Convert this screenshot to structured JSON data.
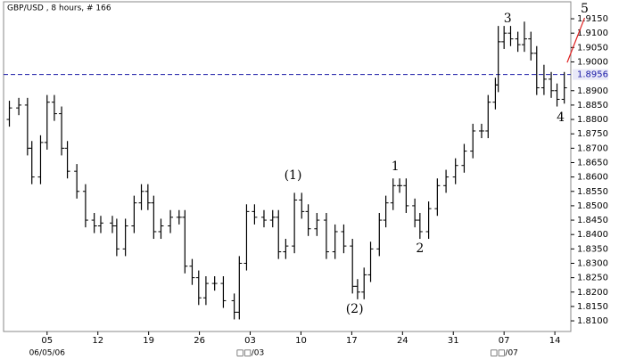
{
  "chart_data": {
    "type": "ohlc",
    "title": "GBP/USD , 8 hours, # 166",
    "bar_color": "#000000",
    "x": [
      -0.2,
      1.1,
      2.3,
      2.9,
      4.1,
      5.0,
      6.0,
      7.0,
      7.8,
      9.1,
      10.3,
      11.5,
      12.4,
      14.0,
      14.6,
      15.8,
      17.0,
      18.0,
      18.9,
      19.7,
      20.7,
      22.0,
      23.2,
      24.0,
      25.0,
      25.9,
      26.9,
      28.1,
      29.3,
      30.8,
      31.5,
      32.5,
      33.6,
      34.9,
      36.1,
      36.9,
      37.9,
      39.1,
      40.1,
      41.0,
      42.2,
      43.5,
      44.7,
      45.9,
      47.1,
      47.8,
      48.7,
      49.6,
      50.8,
      51.7,
      52.7,
      53.6,
      54.5,
      55.7,
      56.4,
      57.6,
      58.8,
      60.0,
      61.3,
      62.5,
      63.7,
      64.9,
      65.8,
      66.8,
      67.2,
      68.0,
      68.9,
      69.9,
      70.8,
      71.7,
      72.5,
      73.5,
      74.5,
      75.3,
      76.3
    ],
    "open": [
      1.88,
      1.884,
      1.885,
      1.87,
      1.86,
      1.872,
      1.886,
      1.882,
      1.87,
      1.862,
      1.855,
      1.845,
      1.843,
      1.844,
      1.843,
      1.835,
      1.843,
      1.851,
      1.855,
      1.851,
      1.841,
      1.843,
      1.846,
      1.846,
      1.829,
      1.825,
      1.818,
      1.823,
      1.823,
      1.817,
      1.813,
      1.83,
      1.848,
      1.846,
      1.845,
      1.846,
      1.834,
      1.836,
      1.852,
      1.848,
      1.842,
      1.845,
      1.834,
      1.841,
      1.836,
      1.822,
      1.82,
      1.826,
      1.835,
      1.845,
      1.851,
      1.857,
      1.857,
      1.85,
      1.845,
      1.841,
      1.849,
      1.857,
      1.86,
      1.864,
      1.869,
      1.876,
      1.876,
      1.886,
      1.892,
      1.907,
      1.91,
      1.908,
      1.906,
      1.908,
      1.903,
      1.891,
      1.894,
      1.89,
      1.887
    ],
    "high": [
      1.8865,
      1.8875,
      1.8875,
      1.8725,
      1.8745,
      1.8885,
      1.8885,
      1.8845,
      1.8725,
      1.8645,
      1.8575,
      1.8475,
      1.8465,
      1.8465,
      1.8455,
      1.8455,
      1.8535,
      1.8575,
      1.8575,
      1.8535,
      1.8455,
      1.8485,
      1.8485,
      1.8485,
      1.8315,
      1.8275,
      1.8255,
      1.8255,
      1.8255,
      1.8195,
      1.8325,
      1.8505,
      1.8505,
      1.8485,
      1.8485,
      1.8485,
      1.8385,
      1.8545,
      1.8545,
      1.8505,
      1.8475,
      1.8475,
      1.8435,
      1.8435,
      1.8385,
      1.8245,
      1.8285,
      1.8375,
      1.8475,
      1.8535,
      1.8595,
      1.8595,
      1.8595,
      1.8525,
      1.8475,
      1.8515,
      1.8595,
      1.8625,
      1.8665,
      1.8715,
      1.8785,
      1.8785,
      1.8885,
      1.8945,
      1.9125,
      1.9125,
      1.9125,
      1.9105,
      1.914,
      1.9105,
      1.9055,
      1.899,
      1.8965,
      1.8925,
      1.8965
    ],
    "low": [
      1.8775,
      1.8815,
      1.8675,
      1.8575,
      1.8575,
      1.8695,
      1.8795,
      1.8675,
      1.8595,
      1.8525,
      1.8425,
      1.8405,
      1.8405,
      1.8405,
      1.8325,
      1.8325,
      1.8405,
      1.8485,
      1.8485,
      1.8385,
      1.8385,
      1.8405,
      1.8435,
      1.8265,
      1.8225,
      1.8155,
      1.8155,
      1.8205,
      1.8145,
      1.8105,
      1.8105,
      1.8275,
      1.8435,
      1.8425,
      1.8425,
      1.8315,
      1.8315,
      1.8335,
      1.8455,
      1.8395,
      1.8395,
      1.8315,
      1.8315,
      1.8335,
      1.8195,
      1.8175,
      1.8175,
      1.8235,
      1.8325,
      1.8425,
      1.8485,
      1.8545,
      1.8475,
      1.8425,
      1.8385,
      1.8385,
      1.8465,
      1.8545,
      1.8575,
      1.8615,
      1.8665,
      1.8735,
      1.8735,
      1.8835,
      1.8895,
      1.9045,
      1.9055,
      1.9035,
      1.9035,
      1.9005,
      1.8885,
      1.8885,
      1.8875,
      1.8845,
      1.8855
    ],
    "close": [
      1.884,
      1.885,
      1.87,
      1.86,
      1.872,
      1.886,
      1.882,
      1.87,
      1.862,
      1.855,
      1.845,
      1.843,
      1.844,
      1.843,
      1.835,
      1.843,
      1.851,
      1.855,
      1.851,
      1.841,
      1.843,
      1.846,
      1.846,
      1.829,
      1.825,
      1.818,
      1.823,
      1.823,
      1.817,
      1.813,
      1.83,
      1.848,
      1.846,
      1.845,
      1.846,
      1.834,
      1.836,
      1.852,
      1.848,
      1.842,
      1.845,
      1.834,
      1.841,
      1.836,
      1.822,
      1.82,
      1.826,
      1.835,
      1.845,
      1.851,
      1.857,
      1.857,
      1.85,
      1.845,
      1.841,
      1.849,
      1.857,
      1.86,
      1.864,
      1.869,
      1.876,
      1.876,
      1.886,
      1.892,
      1.907,
      1.91,
      1.908,
      1.906,
      1.908,
      1.903,
      1.891,
      1.894,
      1.89,
      1.887,
      1.891
    ],
    "xlim": [
      -1.0,
      77.2
    ],
    "xticks": [
      {
        "value": 5,
        "label": "05"
      },
      {
        "value": 12,
        "label": "12"
      },
      {
        "value": 19,
        "label": "19"
      },
      {
        "value": 26,
        "label": "26"
      },
      {
        "value": 33,
        "label": "03"
      },
      {
        "value": 40,
        "label": "10"
      },
      {
        "value": 47,
        "label": "17"
      },
      {
        "value": 54,
        "label": "24"
      },
      {
        "value": 61,
        "label": "31"
      },
      {
        "value": 68,
        "label": "07"
      },
      {
        "value": 75,
        "label": "14"
      }
    ],
    "date_labels": [
      {
        "value": 5,
        "label": "06/05/06"
      },
      {
        "value": 33,
        "label": "□□/03"
      },
      {
        "value": 68,
        "label": "□□/07"
      }
    ],
    "ylim": [
      1.8063,
      1.9209
    ],
    "yticks": [
      {
        "value": 1.81,
        "label": "1.8100"
      },
      {
        "value": 1.815,
        "label": "1.8150"
      },
      {
        "value": 1.82,
        "label": "1.8200"
      },
      {
        "value": 1.825,
        "label": "1.8250"
      },
      {
        "value": 1.83,
        "label": "1.8300"
      },
      {
        "value": 1.835,
        "label": "1.8350"
      },
      {
        "value": 1.84,
        "label": "1.8400"
      },
      {
        "value": 1.845,
        "label": "1.8450"
      },
      {
        "value": 1.85,
        "label": "1.8500"
      },
      {
        "value": 1.855,
        "label": "1.8550"
      },
      {
        "value": 1.86,
        "label": "1.8600"
      },
      {
        "value": 1.865,
        "label": "1.8650"
      },
      {
        "value": 1.87,
        "label": "1.8700"
      },
      {
        "value": 1.875,
        "label": "1.8750"
      },
      {
        "value": 1.88,
        "label": "1.8800"
      },
      {
        "value": 1.885,
        "label": "1.8850"
      },
      {
        "value": 1.89,
        "label": "1.8900"
      },
      {
        "value": 1.9,
        "label": "1.9000"
      },
      {
        "value": 1.905,
        "label": "1.9050"
      },
      {
        "value": 1.91,
        "label": "1.9100"
      },
      {
        "value": 1.915,
        "label": "1.9150"
      }
    ],
    "current_price": {
      "value": 1.8956,
      "label": "1.8956",
      "color": "#1a1aa6"
    },
    "annotations": [
      {
        "text": "(1)",
        "x": 38.9,
        "y": 1.8605
      },
      {
        "text": "1",
        "x": 53.0,
        "y": 1.8636
      },
      {
        "text": "2",
        "x": 56.4,
        "y": 1.8351
      },
      {
        "text": "(2)",
        "x": 47.4,
        "y": 1.814
      },
      {
        "text": "3",
        "x": 68.5,
        "y": 1.915
      },
      {
        "text": "4",
        "x": 75.8,
        "y": 1.8806
      },
      {
        "text": "5",
        "x": 79.1,
        "y": 1.9184
      }
    ],
    "trendlines": [
      {
        "color": "#e02020",
        "x": [
          76.7,
          79.1
        ],
        "y": [
          1.8998,
          1.9153
        ]
      }
    ]
  }
}
